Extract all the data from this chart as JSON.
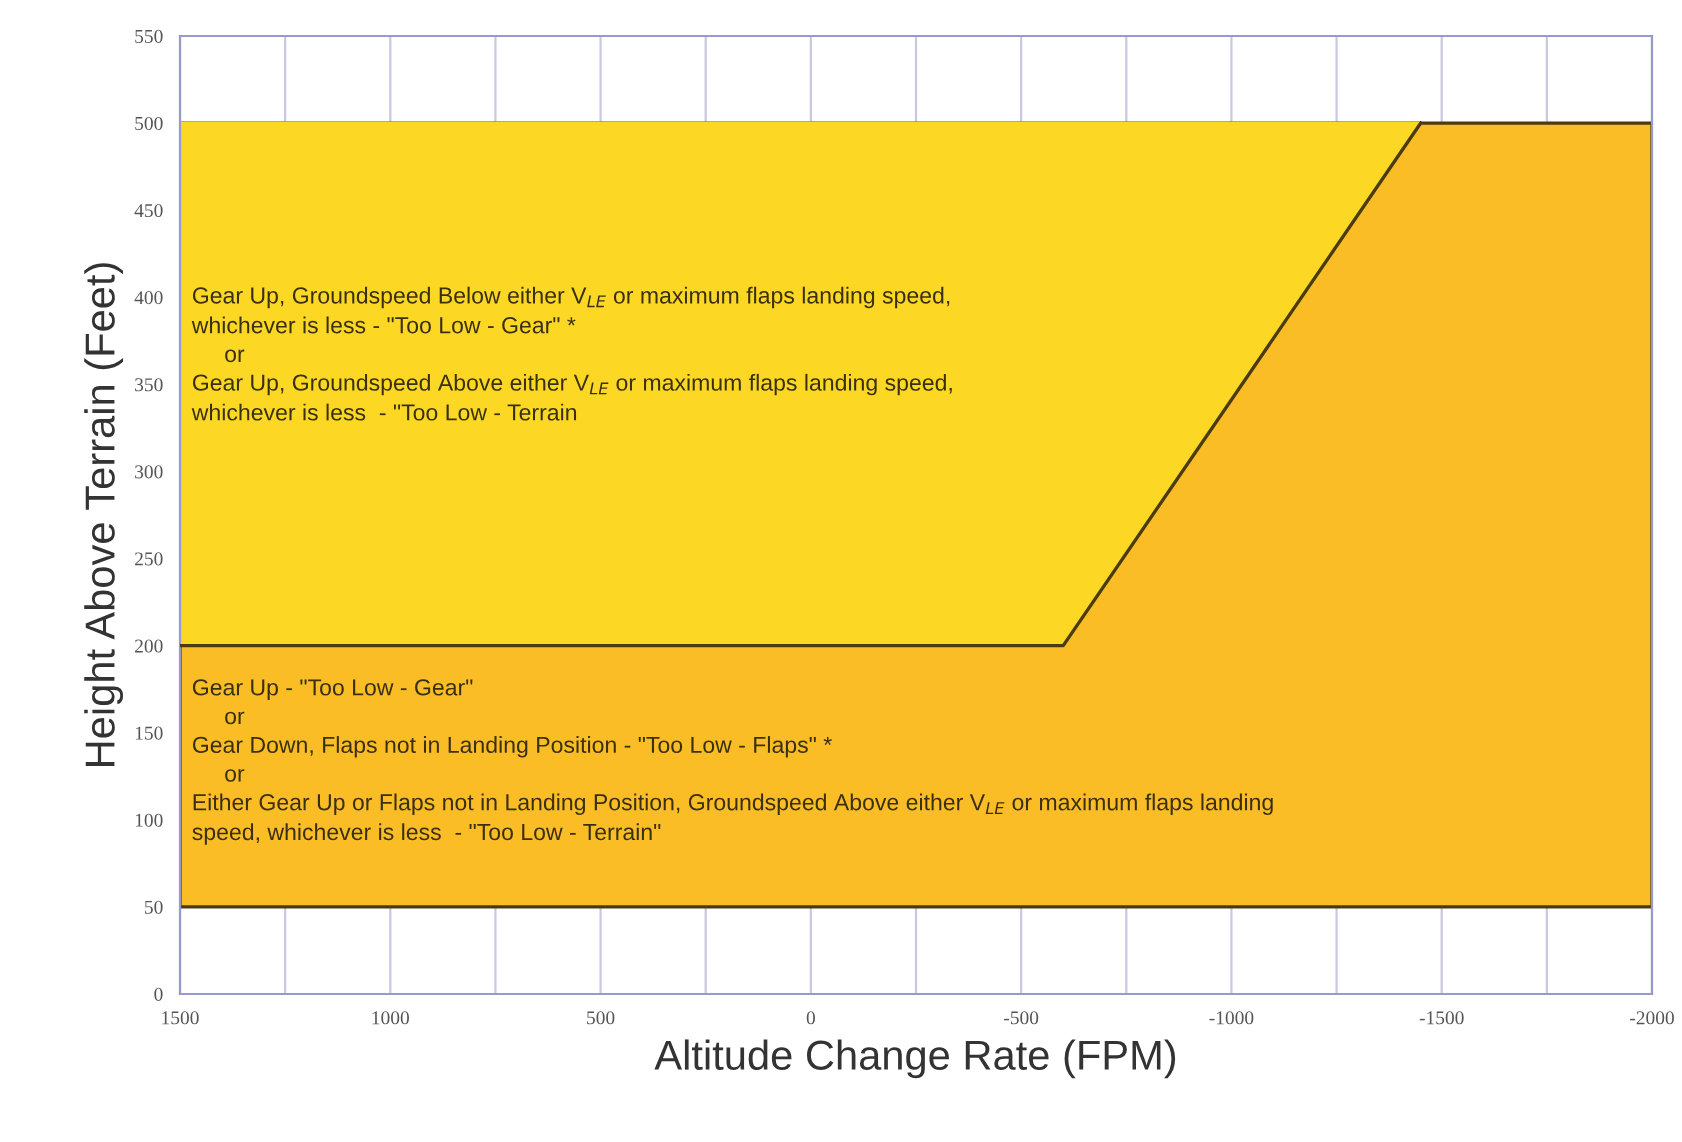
{
  "chart_data": {
    "type": "line",
    "xlabel": "Altitude Change Rate (FPM)",
    "ylabel": "Height Above Terrain (Feet)",
    "xlim": [
      1500,
      -2000
    ],
    "ylim": [
      0,
      550
    ],
    "xticks": [
      1500,
      {
        "value": 1250,
        "label": null
      },
      1000,
      {
        "value": 750,
        "label": null
      },
      500,
      {
        "value": 250,
        "label": null
      },
      0,
      {
        "value": -250,
        "label": null
      },
      -500,
      {
        "value": -750,
        "label": null
      },
      -1000,
      {
        "value": -1250,
        "label": null
      },
      -1500,
      {
        "value": -1750,
        "label": null
      },
      -2000
    ],
    "yticks": [
      0,
      50,
      100,
      150,
      200,
      250,
      300,
      350,
      400,
      450,
      500,
      550
    ],
    "grid": "x",
    "bands": [
      {
        "axis": "y",
        "from": 50,
        "to": 500,
        "color": "#fbbd26"
      }
    ],
    "series": [
      {
        "color": "#fcd824",
        "x": [
          1500,
          -600,
          -1450
        ],
        "values": [
          500,
          500,
          500
        ],
        "lower": [
          200,
          200,
          500
        ],
        "upper": [
          500,
          500,
          500
        ]
      },
      {
        "color": "#4a3c10",
        "x": [
          1500,
          -600,
          -1450
        ],
        "values": [
          200,
          200,
          500
        ]
      }
    ],
    "annotations": [
      "Gear Up, Groundspeed Below either V$_{LE}$ or maximum flaps landing speed,",
      "whichever is less - \"Too Low - Gear\" *",
      "or",
      "Gear Up, Groundspeed Above either V$_{LE}$ or maximum flaps landing speed,",
      "whichever is less  - \"Too Low - Terrain",
      "Gear Up - \"Too Low - Gear\"",
      "or",
      "Gear Down, Flaps not in Landing Position - \"Too Low - Flaps\" *",
      "or",
      "Either Gear Up or Flaps not in Landing Position, Groundspeed Above either V$_{LE}$ or maximum flaps landing",
      "speed, whichever is less  - \"Too Low - Terrain\""
    ]
  }
}
